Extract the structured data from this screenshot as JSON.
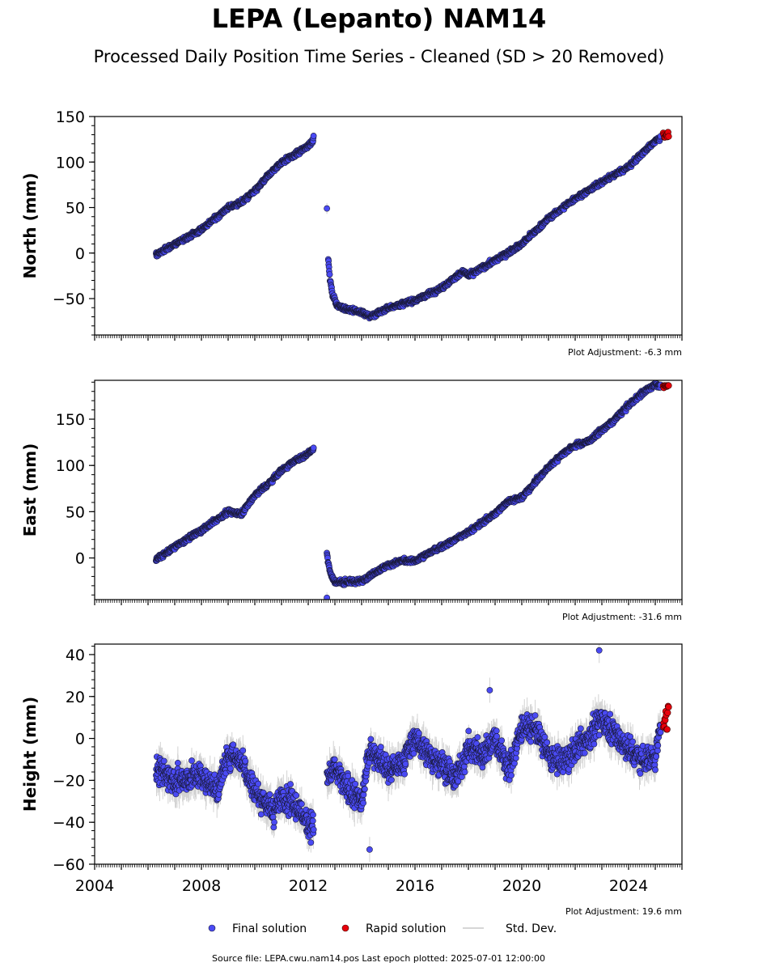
{
  "title": "LEPA (Lepanto) NAM14",
  "subtitle": "Processed Daily Position Time Series - Cleaned (SD > 20 Removed)",
  "colors": {
    "final": "#4a4af4",
    "rapid": "#e8000b",
    "std_dev": "#c8c8c8"
  },
  "legend": [
    {
      "label": "Final solution",
      "color": "#4a4af4",
      "kind": "dot"
    },
    {
      "label": "Rapid solution",
      "color": "#e8000b",
      "kind": "dot"
    },
    {
      "label": "Std. Dev.",
      "color": "#c8c8c8",
      "kind": "line"
    }
  ],
  "footer": "Source file: LEPA.cwu.nam14.pos  Last epoch plotted: 2025-07-01 12:00:00",
  "chart_data": [
    {
      "type": "scatter",
      "ylabel": "North (mm)",
      "ylim": [
        -90,
        150
      ],
      "yticks": [
        -50,
        0,
        50,
        100,
        150
      ],
      "ytick_labels": [
        "−50",
        "0",
        "50",
        "100",
        "150"
      ],
      "adjustment": "Plot Adjustment: -6.3 mm",
      "xlim": [
        2004.0,
        2026.0
      ],
      "series": [
        {
          "kind": "final",
          "segments": [
            {
              "x": [
                2006.3,
                2007.0,
                2008.0,
                2009.0,
                2009.5,
                2010.0,
                2010.5,
                2011.0,
                2011.5,
                2012.0,
                2012.2
              ],
              "y": [
                -2,
                10,
                26,
                50,
                56,
                68,
                85,
                100,
                108,
                118,
                125
              ],
              "sd": 2.5,
              "noise": 2.5
            },
            {
              "x": [
                2012.75,
                2012.8,
                2012.9,
                2013.1,
                2013.5,
                2014.0,
                2014.3,
                2015.0,
                2016.0,
                2017.0,
                2017.8,
                2018.0,
                2019.0,
                2020.0,
                2021.0,
                2022.0,
                2023.0,
                2024.0,
                2025.0,
                2025.2
              ],
              "y": [
                -5,
                -25,
                -45,
                -58,
                -62,
                -65,
                -70,
                -60,
                -52,
                -38,
                -20,
                -25,
                -8,
                10,
                38,
                60,
                78,
                95,
                123,
                127
              ],
              "sd": 2.5,
              "noise": 2.5
            }
          ],
          "points": [
            {
              "x": 2012.7,
              "y": 49
            }
          ]
        },
        {
          "kind": "rapid",
          "x": [
            2025.3,
            2025.5
          ],
          "y": [
            127,
            133
          ],
          "count": 10,
          "noise": 1.5
        }
      ]
    },
    {
      "type": "scatter",
      "ylabel": "East (mm)",
      "ylim": [
        -45,
        192
      ],
      "yticks": [
        0,
        50,
        100,
        150
      ],
      "ytick_labels": [
        "0",
        "50",
        "100",
        "150"
      ],
      "adjustment": "Plot Adjustment: -31.6 mm",
      "xlim": [
        2004.0,
        2026.0
      ],
      "series": [
        {
          "kind": "final",
          "segments": [
            {
              "x": [
                2006.3,
                2007.0,
                2008.0,
                2009.0,
                2009.5,
                2010.0,
                2010.5,
                2011.0,
                2011.5,
                2012.0,
                2012.2
              ],
              "y": [
                -2,
                12,
                30,
                50,
                48,
                68,
                80,
                95,
                105,
                113,
                118
              ],
              "sd": 2.5,
              "noise": 2.5
            },
            {
              "x": [
                2012.7,
                2012.75,
                2012.85,
                2013.0,
                2013.5,
                2014.0,
                2014.5,
                2015.0,
                2015.5,
                2016.0,
                2016.5,
                2017.0,
                2017.5,
                2018.0,
                2018.5,
                2019.0,
                2019.5,
                2020.0,
                2020.5,
                2021.0,
                2021.5,
                2022.0,
                2022.5,
                2023.0,
                2023.5,
                2024.0,
                2024.5,
                2025.0,
                2025.2
              ],
              "y": [
                5,
                -5,
                -18,
                -26,
                -26,
                -25,
                -15,
                -8,
                -3,
                -3,
                5,
                12,
                20,
                28,
                38,
                48,
                62,
                65,
                82,
                98,
                112,
                122,
                126,
                138,
                150,
                165,
                178,
                188,
                186
              ],
              "sd": 2.5,
              "noise": 2.5
            }
          ],
          "points": [
            {
              "x": 2012.7,
              "y": -43
            }
          ]
        },
        {
          "kind": "rapid",
          "x": [
            2025.3,
            2025.5
          ],
          "y": [
            183,
            187
          ],
          "count": 10,
          "noise": 1.5
        }
      ]
    },
    {
      "type": "scatter",
      "ylabel": "Height (mm)",
      "ylim": [
        -60,
        45
      ],
      "yticks": [
        -60,
        -40,
        -20,
        0,
        20,
        40
      ],
      "ytick_labels": [
        "−60",
        "−40",
        "−20",
        "0",
        "20",
        "40"
      ],
      "adjustment": "Plot Adjustment: 19.6 mm",
      "xlim": [
        2004.0,
        2026.0
      ],
      "xticks": [
        2004,
        2008,
        2012,
        2016,
        2020,
        2024
      ],
      "xtick_labels": [
        "2004",
        "2008",
        "2012",
        "2016",
        "2020",
        "2024"
      ],
      "series": [
        {
          "kind": "final",
          "segments": [
            {
              "x": [
                2006.3,
                2007.0,
                2008.0,
                2008.6,
                2009.0,
                2009.5,
                2010.0,
                2010.7,
                2011.0,
                2011.5,
                2012.0,
                2012.2
              ],
              "y": [
                -15,
                -20,
                -18,
                -25,
                -8,
                -10,
                -25,
                -35,
                -28,
                -32,
                -40,
                -42
              ],
              "sd": 5,
              "noise": 6
            },
            {
              "x": [
                2012.7,
                2013.0,
                2013.5,
                2014.0,
                2014.3,
                2015.0,
                2015.5,
                2016.0,
                2016.5,
                2017.0,
                2017.5,
                2018.0,
                2018.5,
                2019.0,
                2019.5,
                2020.0,
                2020.5,
                2021.0,
                2021.5,
                2022.0,
                2022.5,
                2023.0,
                2023.5,
                2024.0,
                2024.5,
                2025.0,
                2025.2
              ],
              "y": [
                -18,
                -15,
                -25,
                -30,
                -5,
                -15,
                -12,
                0,
                -8,
                -12,
                -20,
                -5,
                -8,
                0,
                -15,
                5,
                5,
                -8,
                -12,
                -5,
                0,
                10,
                2,
                -5,
                -10,
                -8,
                5
              ],
              "sd": 5,
              "noise": 6
            }
          ],
          "points": [
            {
              "x": 2022.9,
              "y": 42
            },
            {
              "x": 2018.8,
              "y": 23
            },
            {
              "x": 2014.3,
              "y": -53
            }
          ]
        },
        {
          "kind": "rapid",
          "x": [
            2025.3,
            2025.5
          ],
          "y": [
            4,
            16
          ],
          "count": 12,
          "noise": 1.5
        }
      ]
    }
  ]
}
